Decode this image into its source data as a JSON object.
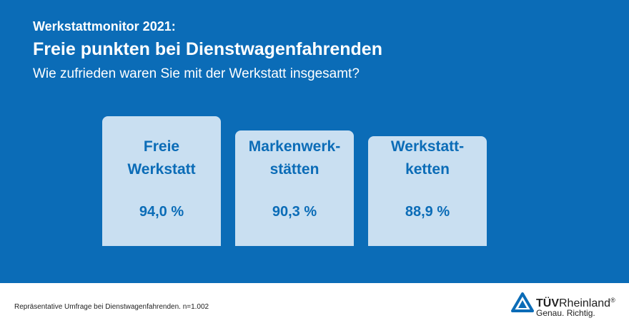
{
  "header": {
    "kicker": "Werkstattmonitor 2021:",
    "title": "Freie punkten bei Dienstwagenfahrenden",
    "subtitle": "Wie zufrieden waren Sie mit der Werkstatt insgesamt?"
  },
  "chart_data": {
    "type": "bar",
    "categories": [
      "Freie\nWerkstatt",
      "Markenwerk-\nstätten",
      "Werkstatt-\nketten"
    ],
    "values": [
      94.0,
      90.3,
      88.9
    ],
    "value_labels": [
      "94,0 %",
      "90,3 %",
      "88,9 %"
    ],
    "unit": "%",
    "title": "Wie zufrieden waren Sie mit der Werkstatt insgesamt?",
    "xlabel": "",
    "ylabel": "",
    "grid": false,
    "colors": {
      "bar": "#c9dff1",
      "text": "#0b6cb7",
      "background": "#0b6cb7"
    }
  },
  "footer": {
    "footnote": "Repräsentative Umfrage bei Dienstwagenfahrenden. n=1.002",
    "logo": {
      "name_strong": "TÜV",
      "name_rest": "Rheinland",
      "registered": "®",
      "slogan": "Genau. Richtig."
    }
  }
}
